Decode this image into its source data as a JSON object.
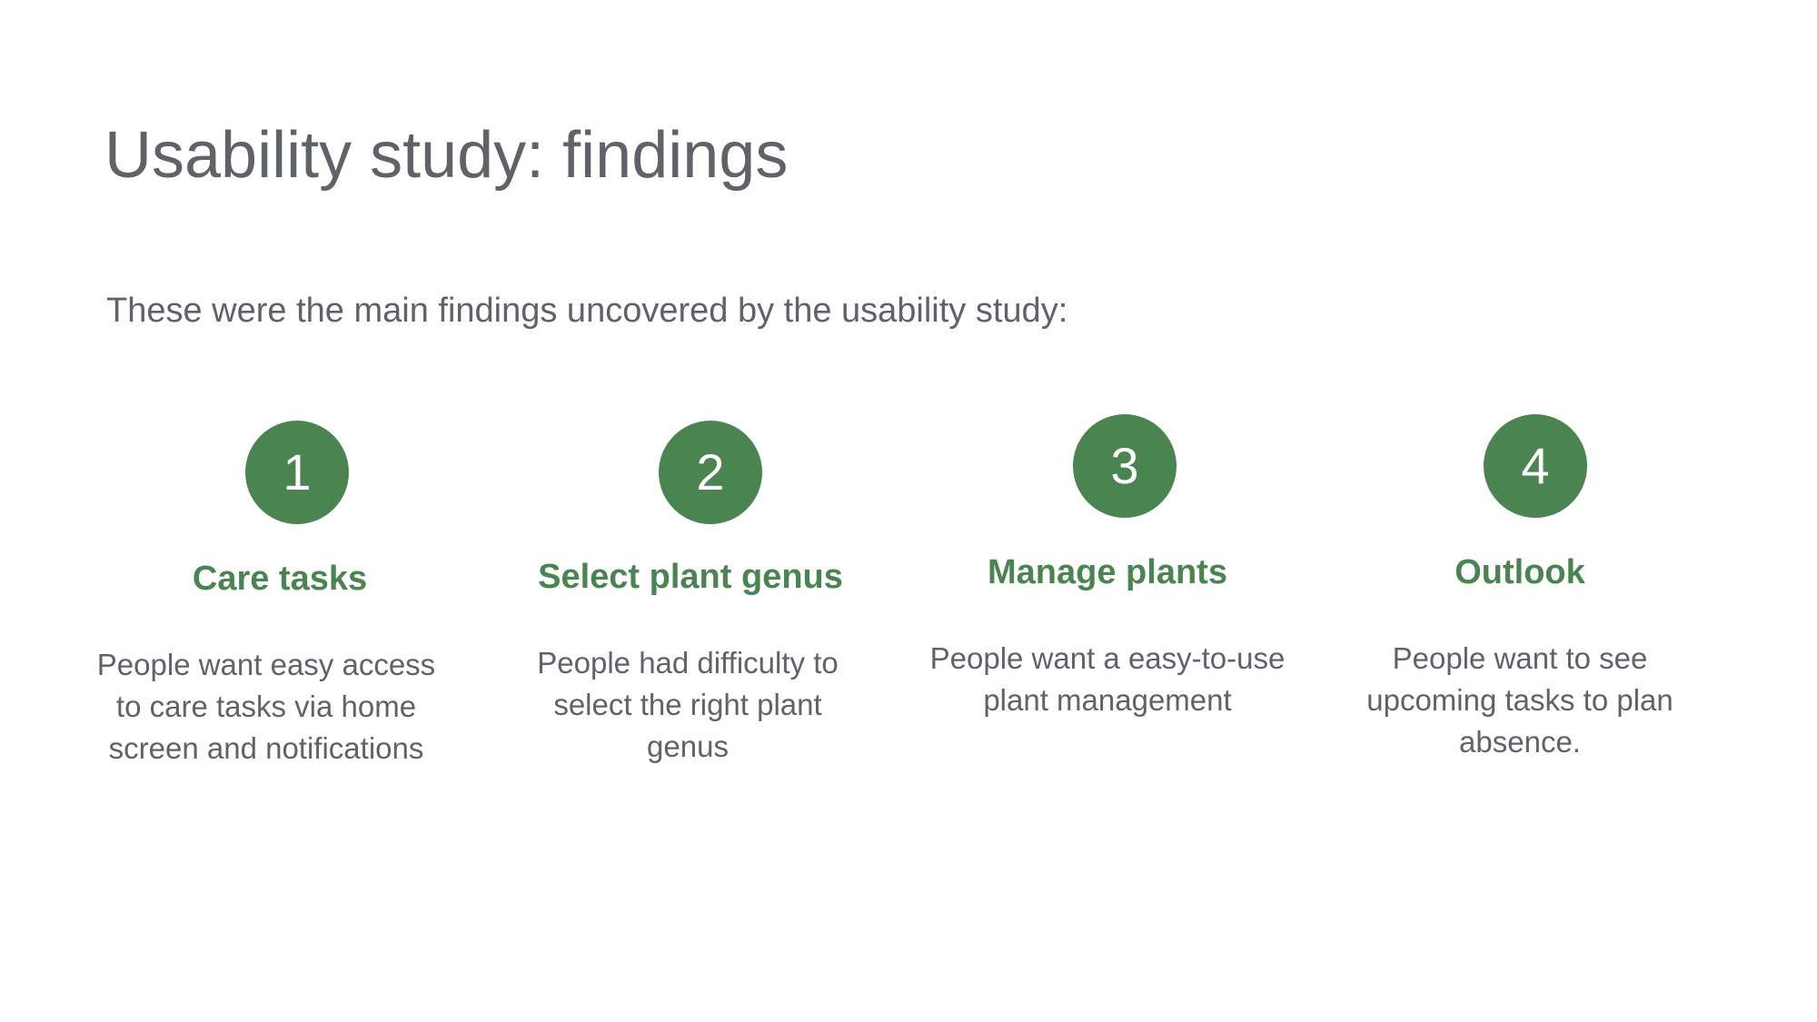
{
  "slide": {
    "title": "Usability study: findings",
    "intro": "These were the main findings uncovered by the usability study:"
  },
  "findings": [
    {
      "number": "1",
      "title": "Care tasks",
      "text": "People want easy access to care tasks via home screen and notifications"
    },
    {
      "number": "2",
      "title": "Select plant genus",
      "text": "People had difficulty to select the right plant genus"
    },
    {
      "number": "3",
      "title": "Manage plants",
      "text": "People want a easy-to-use plant management"
    },
    {
      "number": "4",
      "title": "Outlook",
      "text": "People want to see upcoming tasks to plan absence."
    }
  ],
  "colors": {
    "accent": "#4a8451",
    "text": "#5f6368",
    "background": "#ffffff"
  }
}
